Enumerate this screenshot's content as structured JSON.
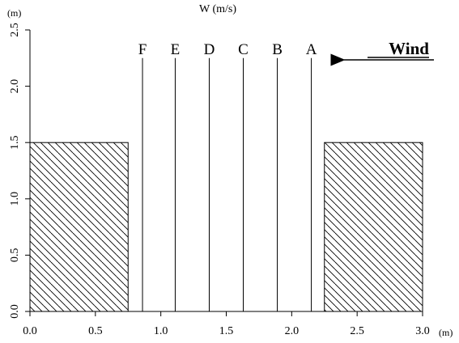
{
  "title": "W (m/s)",
  "axes": {
    "x_unit": "(m)",
    "y_unit": "(m)",
    "xlim": [
      0.0,
      3.0
    ],
    "ylim": [
      0.0,
      2.5
    ],
    "x_ticks": [
      "0.0",
      "0.5",
      "1.0",
      "1.5",
      "2.0",
      "2.5",
      "3.0"
    ],
    "y_ticks": [
      "0.0",
      "0.5",
      "1.0",
      "1.5",
      "2.0",
      "2.5"
    ]
  },
  "wind": {
    "label": "Wind",
    "direction": "right-to-left"
  },
  "vertical_lines": [
    {
      "label": "F",
      "x": 0.86
    },
    {
      "label": "E",
      "x": 1.11
    },
    {
      "label": "D",
      "x": 1.37
    },
    {
      "label": "C",
      "x": 1.63
    },
    {
      "label": "B",
      "x": 1.89
    },
    {
      "label": "A",
      "x": 2.15
    }
  ],
  "line_top_y": 2.25,
  "blocks": [
    {
      "name": "left-block",
      "x0": 0.0,
      "x1": 0.75,
      "y0": 0.0,
      "y1": 1.5,
      "fill": "hatched"
    },
    {
      "name": "right-block",
      "x0": 2.25,
      "x1": 3.0,
      "y0": 0.0,
      "y1": 1.5,
      "fill": "hatched"
    }
  ]
}
